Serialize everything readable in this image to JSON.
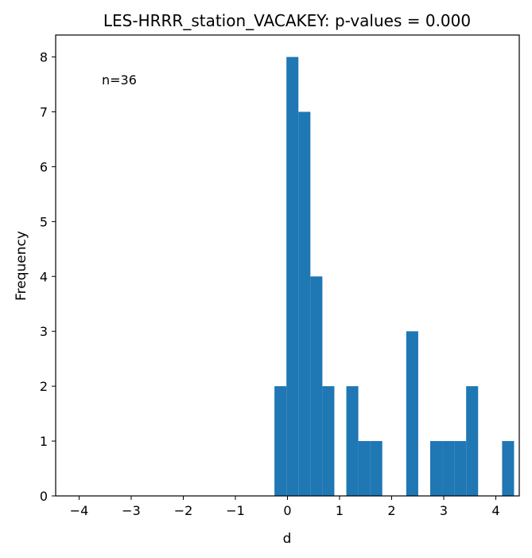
{
  "chart_data": {
    "type": "bar",
    "title": "LES-HRRR_station_VACAKEY: p-values = 0.000",
    "xlabel": "d",
    "ylabel": "Frequency",
    "annotation": "n=36",
    "xlim": [
      -4.45,
      4.45
    ],
    "ylim": [
      0,
      8.4
    ],
    "xticks": [
      -4,
      -3,
      -2,
      -1,
      0,
      1,
      2,
      3,
      4
    ],
    "yticks": [
      0,
      1,
      2,
      3,
      4,
      5,
      6,
      7,
      8
    ],
    "xtick_labels": [
      "−4",
      "−3",
      "−2",
      "−1",
      "0",
      "1",
      "2",
      "3",
      "4"
    ],
    "ytick_labels": [
      "0",
      "1",
      "2",
      "3",
      "4",
      "5",
      "6",
      "7",
      "8"
    ],
    "bin_width": 0.23,
    "bins": [
      {
        "x": -0.25,
        "count": 2
      },
      {
        "x": -0.02,
        "count": 8
      },
      {
        "x": 0.21,
        "count": 7
      },
      {
        "x": 0.44,
        "count": 4
      },
      {
        "x": 0.67,
        "count": 2
      },
      {
        "x": 1.13,
        "count": 2
      },
      {
        "x": 1.36,
        "count": 1
      },
      {
        "x": 1.59,
        "count": 1
      },
      {
        "x": 2.28,
        "count": 3
      },
      {
        "x": 2.74,
        "count": 1
      },
      {
        "x": 2.97,
        "count": 1
      },
      {
        "x": 3.2,
        "count": 1
      },
      {
        "x": 3.43,
        "count": 2
      },
      {
        "x": 4.12,
        "count": 1
      }
    ],
    "bar_color": "#1f77b4",
    "grid": false,
    "legend": "none"
  }
}
